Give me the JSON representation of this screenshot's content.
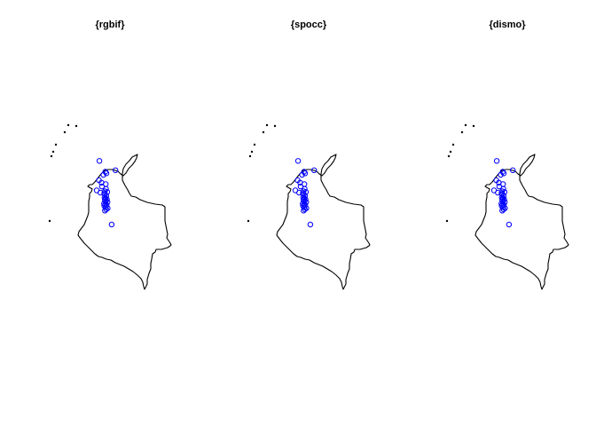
{
  "figure": {
    "background": "#ffffff",
    "outline_color": "#000000",
    "point_color": "#0000ff"
  },
  "chart_data": [
    {
      "type": "scatter",
      "title": "{rgbif}",
      "series": [
        {
          "x": [
            -74.12,
            -73.72,
            -73.85,
            -73.65,
            -74.15,
            -73.98,
            -74.3,
            -73.95,
            -73.7,
            -73.6,
            -74.05,
            -73.68,
            -73.75,
            -73.8,
            -73.74,
            -73.66,
            -73.78,
            -73.71,
            -73.62,
            -73.76,
            -73.69,
            -73.58,
            -73.81,
            -73.73,
            -73.64,
            -73.79,
            -73.7,
            -73.57,
            -73.67,
            -73.75,
            -73.05,
            -73.3
          ],
          "y": [
            7.1,
            6.4,
            6.2,
            6.3,
            5.85,
            5.7,
            5.2,
            5.45,
            5.6,
            5.1,
            5.05,
            5.3,
            5.15,
            5.02,
            4.95,
            4.85,
            4.75,
            4.7,
            4.62,
            4.58,
            4.5,
            4.45,
            4.35,
            4.3,
            4.25,
            4.2,
            4.12,
            4.05,
            3.98,
            3.9,
            6.5,
            3.0
          ]
        }
      ]
    },
    {
      "type": "scatter",
      "title": "{spocc}",
      "series": [
        {
          "x": [
            -74.12,
            -73.72,
            -73.85,
            -73.65,
            -74.15,
            -73.98,
            -74.3,
            -73.95,
            -73.7,
            -73.6,
            -74.05,
            -73.68,
            -73.75,
            -73.8,
            -73.74,
            -73.66,
            -73.78,
            -73.71,
            -73.62,
            -73.76,
            -73.69,
            -73.58,
            -73.81,
            -73.73,
            -73.64,
            -73.79,
            -73.7,
            -73.57,
            -73.67,
            -73.75,
            -73.05,
            -73.3
          ],
          "y": [
            7.1,
            6.4,
            6.2,
            6.3,
            5.85,
            5.7,
            5.2,
            5.45,
            5.6,
            5.1,
            5.05,
            5.3,
            5.15,
            5.02,
            4.95,
            4.85,
            4.75,
            4.7,
            4.62,
            4.58,
            4.5,
            4.45,
            4.35,
            4.3,
            4.25,
            4.2,
            4.12,
            4.05,
            3.98,
            3.9,
            6.5,
            3.0
          ]
        }
      ]
    },
    {
      "type": "scatter",
      "title": "{dismo}",
      "series": [
        {
          "x": [
            -74.12,
            -73.72,
            -73.85,
            -73.65,
            -74.15,
            -73.98,
            -74.3,
            -73.95,
            -73.7,
            -73.6,
            -74.05,
            -73.68,
            -73.75,
            -73.8,
            -73.74,
            -73.66,
            -73.78,
            -73.71,
            -73.62,
            -73.76,
            -73.69,
            -73.58,
            -73.81,
            -73.73,
            -73.64,
            -73.79,
            -73.7,
            -73.57,
            -73.67,
            -73.75,
            -73.05,
            -73.3
          ],
          "y": [
            7.1,
            6.4,
            6.2,
            6.3,
            5.85,
            5.7,
            5.2,
            5.45,
            5.6,
            5.1,
            5.05,
            5.3,
            5.15,
            5.02,
            4.95,
            4.85,
            4.75,
            4.7,
            4.62,
            4.58,
            4.5,
            4.45,
            4.35,
            4.3,
            4.25,
            4.2,
            4.12,
            4.05,
            3.98,
            3.9,
            6.5,
            3.0
          ]
        }
      ]
    }
  ]
}
